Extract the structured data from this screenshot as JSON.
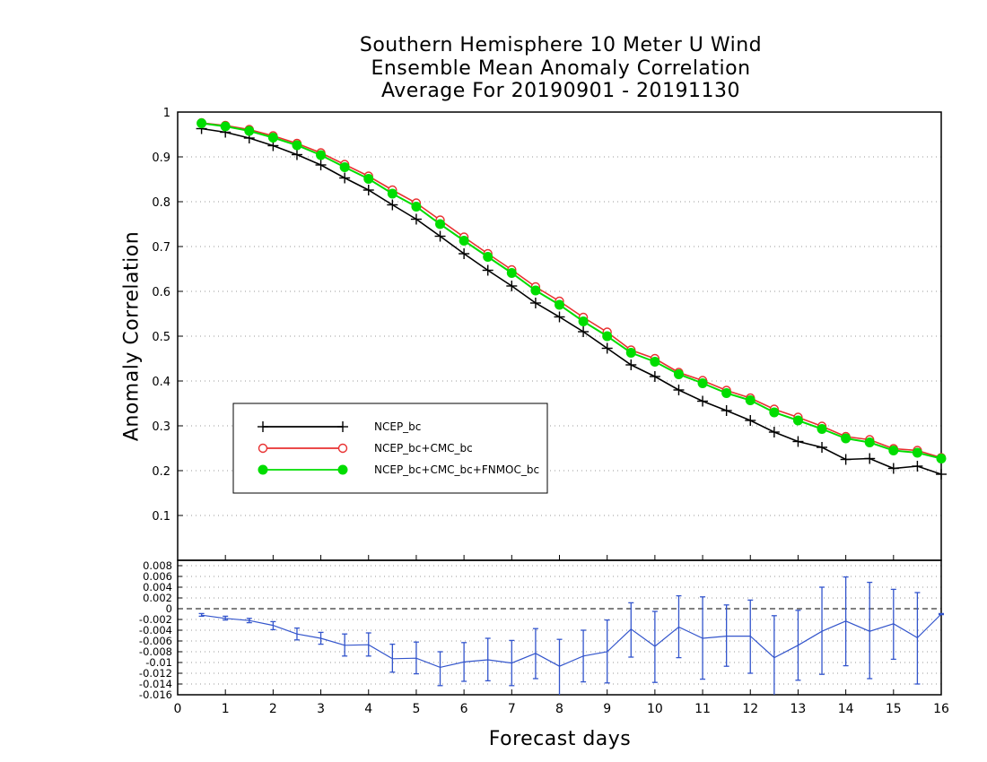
{
  "title_lines": [
    "Southern Hemisphere 10 Meter U Wind",
    "Ensemble Mean Anomaly Correlation",
    "Average For 20190901 - 20191130"
  ],
  "chart_data": [
    {
      "type": "line",
      "title": "Southern Hemisphere 10 Meter U Wind Ensemble Mean Anomaly Correlation Average For 20190901 - 20191130",
      "xlabel": "",
      "ylabel": "Anomaly Correlation",
      "xlim": [
        0,
        16
      ],
      "ylim": [
        0,
        1
      ],
      "yticks": [
        "0.1",
        "0.2",
        "0.3",
        "0.4",
        "0.5",
        "0.6",
        "0.7",
        "0.8",
        "0.9",
        "1"
      ],
      "grid": true,
      "legend_position": "left",
      "x": [
        0.5,
        1,
        1.5,
        2,
        2.5,
        3,
        3.5,
        4,
        4.5,
        5,
        5.5,
        6,
        6.5,
        7,
        7.5,
        8,
        8.5,
        9,
        9.5,
        10,
        10.5,
        11,
        11.5,
        12,
        12.5,
        13,
        13.5,
        14,
        14.5,
        15,
        15.5,
        16
      ],
      "series": [
        {
          "name": "NCEP_bc",
          "color": "#000000",
          "marker": "plus",
          "values": [
            0.963,
            0.955,
            0.942,
            0.925,
            0.905,
            0.882,
            0.853,
            0.826,
            0.793,
            0.761,
            0.723,
            0.684,
            0.647,
            0.612,
            0.574,
            0.543,
            0.51,
            0.473,
            0.436,
            0.41,
            0.38,
            0.355,
            0.334,
            0.312,
            0.286,
            0.265,
            0.252,
            0.225,
            0.227,
            0.205,
            0.21,
            0.192
          ]
        },
        {
          "name": "NCEP_bc+CMC_bc",
          "color": "#e83030",
          "marker": "open-circle",
          "values": [
            0.976,
            0.97,
            0.961,
            0.947,
            0.93,
            0.909,
            0.883,
            0.857,
            0.826,
            0.797,
            0.759,
            0.721,
            0.684,
            0.648,
            0.61,
            0.578,
            0.542,
            0.509,
            0.469,
            0.45,
            0.419,
            0.401,
            0.379,
            0.362,
            0.337,
            0.319,
            0.299,
            0.276,
            0.269,
            0.249,
            0.245,
            0.229
          ]
        },
        {
          "name": "NCEP_bc+CMC_bc+FNMOC_bc",
          "color": "#00dd00",
          "marker": "filled-circle",
          "values": [
            0.975,
            0.968,
            0.958,
            0.943,
            0.926,
            0.904,
            0.877,
            0.851,
            0.818,
            0.789,
            0.75,
            0.713,
            0.677,
            0.641,
            0.602,
            0.57,
            0.533,
            0.5,
            0.463,
            0.443,
            0.415,
            0.395,
            0.373,
            0.357,
            0.33,
            0.312,
            0.293,
            0.272,
            0.263,
            0.245,
            0.24,
            0.227
          ]
        }
      ]
    },
    {
      "type": "line",
      "title": "",
      "xlabel": "Forecast days",
      "ylabel": "",
      "xlim": [
        0,
        16
      ],
      "ylim": [
        -0.016,
        0.009
      ],
      "xticks": [
        "0",
        "1",
        "2",
        "3",
        "4",
        "5",
        "6",
        "7",
        "8",
        "9",
        "10",
        "11",
        "12",
        "13",
        "14",
        "15",
        "16"
      ],
      "yticks": [
        "0.008",
        "0.006",
        "0.004",
        "0.002",
        "0",
        "-0.002",
        "-0.004",
        "-0.006",
        "-0.008",
        "-0.01",
        "-0.012",
        "-0.014",
        "-0.016"
      ],
      "grid": true,
      "x": [
        0.5,
        1,
        1.5,
        2,
        2.5,
        3,
        3.5,
        4,
        4.5,
        5,
        5.5,
        6,
        6.5,
        7,
        7.5,
        8,
        8.5,
        9,
        9.5,
        10,
        10.5,
        11,
        11.5,
        12,
        12.5,
        13,
        13.5,
        14,
        14.5,
        15,
        15.5,
        16
      ],
      "series": [
        {
          "name": "",
          "color": "#3355cc",
          "marker": "error-bar",
          "values": [
            -0.0012,
            -0.0018,
            -0.0022,
            -0.0031,
            -0.0047,
            -0.0055,
            -0.0068,
            -0.0067,
            -0.0093,
            -0.0092,
            -0.0109,
            -0.0099,
            -0.0095,
            -0.0101,
            -0.0083,
            -0.0107,
            -0.0088,
            -0.008,
            -0.0038,
            -0.007,
            -0.0034,
            -0.0055,
            -0.0051,
            -0.0051,
            -0.0091,
            -0.0068,
            -0.0042,
            -0.0023,
            -0.0042,
            -0.0028,
            -0.0054,
            -0.001
          ],
          "lower": [
            -0.0014,
            -0.0021,
            -0.0026,
            -0.0039,
            -0.0058,
            -0.0066,
            -0.0088,
            -0.0088,
            -0.0118,
            -0.0121,
            -0.0143,
            -0.0135,
            -0.0134,
            -0.0143,
            -0.013,
            -0.0162,
            -0.0136,
            -0.0138,
            -0.009,
            -0.0137,
            -0.0091,
            -0.0131,
            -0.0107,
            -0.012,
            -0.017,
            -0.0133,
            -0.0122,
            -0.0106,
            -0.013,
            -0.0094,
            -0.014,
            -0.0011
          ],
          "upper": [
            -0.0009,
            -0.0014,
            -0.0018,
            -0.0024,
            -0.0036,
            -0.0044,
            -0.0047,
            -0.0045,
            -0.0066,
            -0.0062,
            -0.008,
            -0.0063,
            -0.0055,
            -0.0059,
            -0.0037,
            -0.0057,
            -0.004,
            -0.0021,
            0.0011,
            -0.0005,
            0.0024,
            0.0022,
            0.0007,
            0.0016,
            -0.0013,
            -0.0003,
            0.004,
            0.0059,
            0.0049,
            0.0036,
            0.003,
            -0.0009
          ]
        }
      ]
    }
  ]
}
